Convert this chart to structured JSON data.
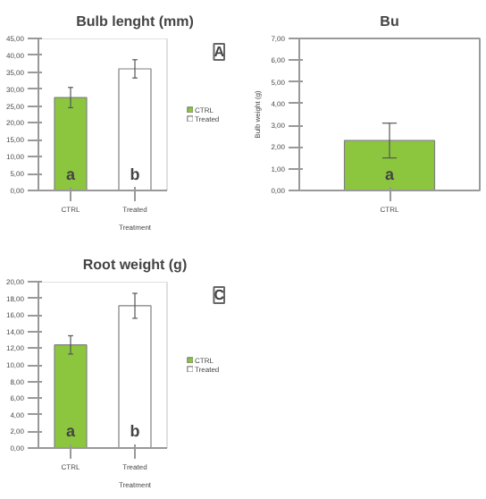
{
  "chart_data": [
    {
      "type": "bar",
      "title": "Bulb lenght (mm)",
      "xlabel": "Treatment",
      "categories": [
        "CTRL",
        "Treated"
      ],
      "series": [
        {
          "name": "CTRL",
          "color": "#8cc63f",
          "values": [
            27.5,
            null
          ],
          "errors": [
            3.0,
            null
          ]
        },
        {
          "name": "Treated",
          "color": "#ffffff",
          "values": [
            null,
            36.0
          ],
          "errors": [
            null,
            2.7
          ]
        }
      ],
      "ylim": [
        0,
        45
      ],
      "yticks": [
        {
          "value": 0,
          "label": "0,00"
        },
        {
          "value": 5,
          "label": "5,00"
        },
        {
          "value": 10,
          "label": "10,00"
        },
        {
          "value": 15,
          "label": "15,00"
        },
        {
          "value": 20,
          "label": "20,00"
        },
        {
          "value": 25,
          "label": "25,00"
        },
        {
          "value": 30,
          "label": "30,00"
        },
        {
          "value": 35,
          "label": "35,00"
        },
        {
          "value": 40,
          "label": "40,00"
        },
        {
          "value": 45,
          "label": "45,00"
        }
      ],
      "annotations": [
        "A",
        "a",
        "b"
      ],
      "legend": "right",
      "grid": false
    },
    {
      "type": "bar",
      "title": "Bu",
      "ylabel": "Bulb weight (g)",
      "categories": [
        "CTRL"
      ],
      "series": [
        {
          "color": "#8cc63f",
          "values": [
            2.3
          ],
          "errors": [
            0.8
          ]
        }
      ],
      "ylim": [
        0,
        7
      ],
      "yticks": [
        {
          "value": 0,
          "label": "0,00"
        },
        {
          "value": 1,
          "label": "1,00"
        },
        {
          "value": 2,
          "label": "2,00"
        },
        {
          "value": 3,
          "label": "3,00"
        },
        {
          "value": 4,
          "label": "4,00"
        },
        {
          "value": 5,
          "label": "5,00"
        },
        {
          "value": 6,
          "label": "6,00"
        },
        {
          "value": 7,
          "label": "7,00"
        }
      ],
      "annotations": [
        "a"
      ],
      "grid": false
    },
    {
      "type": "bar",
      "title": "Root weight (g)",
      "xlabel": "Treatment",
      "categories": [
        "CTRL",
        "Treated"
      ],
      "series": [
        {
          "name": "CTRL",
          "color": "#8cc63f",
          "values": [
            12.4,
            null
          ],
          "errors": [
            1.1,
            null
          ]
        },
        {
          "name": "Treated",
          "color": "#ffffff",
          "values": [
            null,
            17.1
          ],
          "errors": [
            null,
            1.5
          ]
        }
      ],
      "ylim": [
        0,
        20
      ],
      "yticks": [
        {
          "value": 0,
          "label": "0,00"
        },
        {
          "value": 2,
          "label": "2,00"
        },
        {
          "value": 4,
          "label": "4,00"
        },
        {
          "value": 6,
          "label": "6,00"
        },
        {
          "value": 8,
          "label": "8,00"
        },
        {
          "value": 10,
          "label": "10,00"
        },
        {
          "value": 12,
          "label": "12,00"
        },
        {
          "value": 14,
          "label": "14,00"
        },
        {
          "value": 16,
          "label": "16,00"
        },
        {
          "value": 18,
          "label": "18,00"
        },
        {
          "value": 20,
          "label": "20,00"
        }
      ],
      "annotations": [
        "C",
        "a",
        "b"
      ],
      "legend": "right",
      "grid": false
    }
  ]
}
